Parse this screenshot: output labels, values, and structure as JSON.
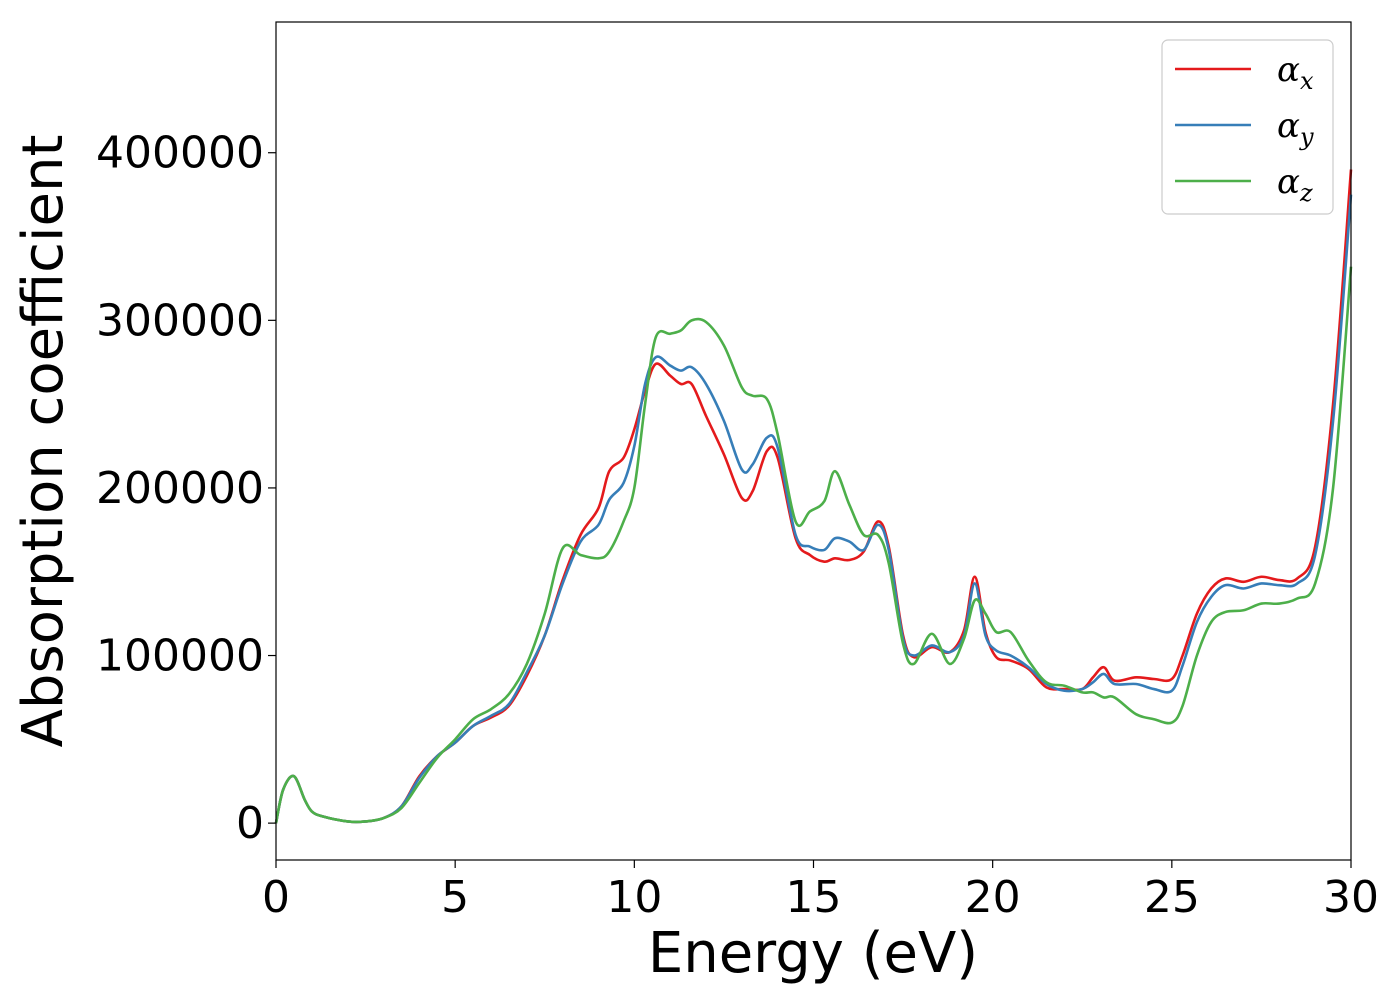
{
  "chart_data": {
    "type": "line",
    "title": "",
    "xlabel": "Energy (eV)",
    "ylabel": "Absorption coefficient",
    "xlim": [
      0,
      30
    ],
    "ylim": [
      -22000,
      478000
    ],
    "xticks": [
      0,
      5,
      10,
      15,
      20,
      25,
      30
    ],
    "yticks": [
      0,
      100000,
      200000,
      300000,
      400000
    ],
    "grid": false,
    "legend_position": "top-right",
    "series": [
      {
        "name": "αx",
        "name_base": "α",
        "name_sub": "x",
        "color": "#e41a1c",
        "x": [
          0,
          0.2,
          0.5,
          0.8,
          1.0,
          1.3,
          2.0,
          2.5,
          3.0,
          3.5,
          4.0,
          4.5,
          5.0,
          5.5,
          6.0,
          6.5,
          7.0,
          7.5,
          8.0,
          8.5,
          9.0,
          9.3,
          9.7,
          10.0,
          10.3,
          10.6,
          11.0,
          11.3,
          11.6,
          12.0,
          12.5,
          13.0,
          13.3,
          13.7,
          14.0,
          14.5,
          14.9,
          15.3,
          15.6,
          16.0,
          16.4,
          16.8,
          17.1,
          17.5,
          17.8,
          18.3,
          18.8,
          19.2,
          19.5,
          19.8,
          20.1,
          20.5,
          21.0,
          21.5,
          22.0,
          22.5,
          22.8,
          23.1,
          23.4,
          24.0,
          24.5,
          25.0,
          25.3,
          25.7,
          26.1,
          26.5,
          27.0,
          27.5,
          28.0,
          28.5,
          29.0,
          29.5,
          30.0
        ],
        "y": [
          0,
          20000,
          28000,
          14000,
          7000,
          4000,
          1000,
          1000,
          3000,
          10000,
          28000,
          40000,
          48000,
          58000,
          63000,
          70000,
          88000,
          112000,
          145000,
          172000,
          188000,
          210000,
          218000,
          235000,
          258000,
          274000,
          267000,
          262000,
          262000,
          243000,
          220000,
          194000,
          198000,
          222000,
          218000,
          170000,
          160000,
          156000,
          158000,
          157000,
          162000,
          180000,
          165000,
          112000,
          99000,
          105000,
          102000,
          115000,
          147000,
          114000,
          99000,
          97000,
          92000,
          81000,
          80000,
          80000,
          87000,
          93000,
          85000,
          87000,
          86000,
          86000,
          100000,
          125000,
          140000,
          146000,
          144000,
          147000,
          145000,
          146000,
          165000,
          250000,
          390000
        ]
      },
      {
        "name": "αy",
        "name_base": "α",
        "name_sub": "y",
        "color": "#377eb8",
        "x": [
          0,
          0.2,
          0.5,
          0.8,
          1.0,
          1.3,
          2.0,
          2.5,
          3.0,
          3.5,
          4.0,
          4.5,
          5.0,
          5.5,
          6.0,
          6.5,
          7.0,
          7.5,
          8.0,
          8.5,
          9.0,
          9.3,
          9.7,
          10.0,
          10.3,
          10.6,
          11.0,
          11.3,
          11.6,
          12.0,
          12.5,
          13.0,
          13.3,
          13.7,
          14.0,
          14.5,
          14.9,
          15.3,
          15.6,
          16.0,
          16.4,
          16.8,
          17.1,
          17.5,
          17.8,
          18.3,
          18.8,
          19.2,
          19.5,
          19.8,
          20.1,
          20.5,
          21.0,
          21.5,
          22.0,
          22.5,
          22.8,
          23.1,
          23.4,
          24.0,
          24.5,
          25.0,
          25.3,
          25.7,
          26.1,
          26.5,
          27.0,
          27.5,
          28.0,
          28.5,
          29.0,
          29.5,
          30.0
        ],
        "y": [
          0,
          20000,
          28000,
          14000,
          7000,
          4000,
          1000,
          1000,
          3000,
          10000,
          27000,
          40000,
          48000,
          58000,
          64000,
          71000,
          90000,
          112000,
          143000,
          168000,
          178000,
          193000,
          203000,
          225000,
          262000,
          278000,
          273000,
          270000,
          272000,
          262000,
          240000,
          211000,
          214000,
          230000,
          224000,
          172000,
          165000,
          163000,
          170000,
          168000,
          163000,
          178000,
          163000,
          110000,
          100000,
          106000,
          102000,
          112000,
          143000,
          112000,
          103000,
          100000,
          93000,
          83000,
          79000,
          80000,
          84000,
          89000,
          83000,
          83000,
          80000,
          79000,
          94000,
          120000,
          135000,
          142000,
          140000,
          143000,
          142000,
          143000,
          160000,
          240000,
          375000
        ]
      },
      {
        "name": "αz",
        "name_base": "α",
        "name_sub": "z",
        "color": "#4daf4a",
        "x": [
          0,
          0.2,
          0.5,
          0.8,
          1.0,
          1.3,
          2.0,
          2.5,
          3.0,
          3.5,
          4.0,
          4.5,
          5.0,
          5.5,
          6.0,
          6.5,
          7.0,
          7.5,
          8.0,
          8.5,
          9.0,
          9.3,
          9.7,
          10.0,
          10.3,
          10.6,
          11.0,
          11.3,
          11.6,
          12.0,
          12.5,
          13.0,
          13.3,
          13.7,
          14.0,
          14.5,
          14.9,
          15.3,
          15.6,
          16.0,
          16.4,
          16.8,
          17.1,
          17.5,
          17.8,
          18.3,
          18.8,
          19.2,
          19.5,
          19.8,
          20.1,
          20.5,
          21.0,
          21.5,
          22.0,
          22.5,
          22.8,
          23.1,
          23.4,
          24.0,
          24.5,
          25.0,
          25.3,
          25.7,
          26.1,
          26.5,
          27.0,
          27.5,
          28.0,
          28.5,
          29.0,
          29.5,
          30.0
        ],
        "y": [
          0,
          20000,
          28000,
          14000,
          7000,
          4000,
          1000,
          1000,
          3000,
          9000,
          24000,
          39000,
          50000,
          62000,
          68000,
          77000,
          95000,
          125000,
          164000,
          160000,
          158000,
          162000,
          180000,
          200000,
          250000,
          290000,
          292000,
          294000,
          300000,
          299000,
          285000,
          260000,
          255000,
          253000,
          232000,
          180000,
          186000,
          192000,
          210000,
          190000,
          172000,
          172000,
          155000,
          107000,
          95000,
          113000,
          95000,
          110000,
          133000,
          125000,
          114000,
          114000,
          97000,
          84000,
          82000,
          78000,
          78000,
          75000,
          75000,
          65000,
          62000,
          60000,
          70000,
          100000,
          120000,
          126000,
          127000,
          131000,
          131000,
          134000,
          143000,
          200000,
          332000
        ]
      }
    ]
  }
}
